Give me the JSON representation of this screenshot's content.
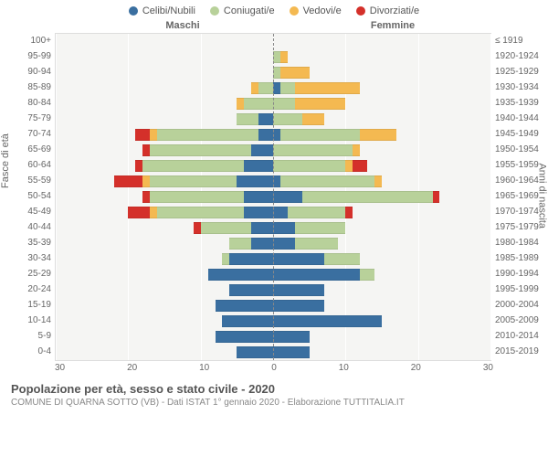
{
  "legend": [
    {
      "label": "Celibi/Nubili",
      "color": "#3a6fa0"
    },
    {
      "label": "Coniugati/e",
      "color": "#b8d19a"
    },
    {
      "label": "Vedovi/e",
      "color": "#f4b951"
    },
    {
      "label": "Divorziati/e",
      "color": "#d4302a"
    }
  ],
  "header_maschi": "Maschi",
  "header_femmine": "Femmine",
  "y_left_title": "Fasce di età",
  "y_right_title": "Anni di nascita",
  "title": "Popolazione per età, sesso e stato civile - 2020",
  "subtitle": "COMUNE DI QUARNA SOTTO (VB) - Dati ISTAT 1° gennaio 2020 - Elaborazione TUTTITALIA.IT",
  "x_ticks": [
    "30",
    "20",
    "10",
    "0",
    "10",
    "20",
    "30"
  ],
  "x_max": 30,
  "colors": {
    "celibi": "#3a6fa0",
    "coniugati": "#b8d19a",
    "vedovi": "#f4b951",
    "divorziati": "#d4302a",
    "plot_bg": "#f5f5f3",
    "grid": "#ffffff",
    "border": "#dddddd"
  },
  "rows": [
    {
      "age": "100+",
      "birth": "≤ 1919",
      "m": {
        "celibi": 0,
        "coniugati": 0,
        "vedovi": 0,
        "divorziati": 0
      },
      "f": {
        "celibi": 0,
        "coniugati": 0,
        "vedovi": 0,
        "divorziati": 0
      }
    },
    {
      "age": "95-99",
      "birth": "1920-1924",
      "m": {
        "celibi": 0,
        "coniugati": 0,
        "vedovi": 0,
        "divorziati": 0
      },
      "f": {
        "celibi": 0,
        "coniugati": 1,
        "vedovi": 1,
        "divorziati": 0
      }
    },
    {
      "age": "90-94",
      "birth": "1925-1929",
      "m": {
        "celibi": 0,
        "coniugati": 0,
        "vedovi": 0,
        "divorziati": 0
      },
      "f": {
        "celibi": 0,
        "coniugati": 1,
        "vedovi": 4,
        "divorziati": 0
      }
    },
    {
      "age": "85-89",
      "birth": "1930-1934",
      "m": {
        "celibi": 0,
        "coniugati": 2,
        "vedovi": 1,
        "divorziati": 0
      },
      "f": {
        "celibi": 1,
        "coniugati": 2,
        "vedovi": 9,
        "divorziati": 0
      }
    },
    {
      "age": "80-84",
      "birth": "1935-1939",
      "m": {
        "celibi": 0,
        "coniugati": 4,
        "vedovi": 1,
        "divorziati": 0
      },
      "f": {
        "celibi": 0,
        "coniugati": 3,
        "vedovi": 7,
        "divorziati": 0
      }
    },
    {
      "age": "75-79",
      "birth": "1940-1944",
      "m": {
        "celibi": 2,
        "coniugati": 3,
        "vedovi": 0,
        "divorziati": 0
      },
      "f": {
        "celibi": 0,
        "coniugati": 4,
        "vedovi": 3,
        "divorziati": 0
      }
    },
    {
      "age": "70-74",
      "birth": "1945-1949",
      "m": {
        "celibi": 2,
        "coniugati": 14,
        "vedovi": 1,
        "divorziati": 2
      },
      "f": {
        "celibi": 1,
        "coniugati": 11,
        "vedovi": 5,
        "divorziati": 0
      }
    },
    {
      "age": "65-69",
      "birth": "1950-1954",
      "m": {
        "celibi": 3,
        "coniugati": 14,
        "vedovi": 0,
        "divorziati": 1
      },
      "f": {
        "celibi": 0,
        "coniugati": 11,
        "vedovi": 1,
        "divorziati": 0
      }
    },
    {
      "age": "60-64",
      "birth": "1955-1959",
      "m": {
        "celibi": 4,
        "coniugati": 14,
        "vedovi": 0,
        "divorziati": 1
      },
      "f": {
        "celibi": 0,
        "coniugati": 10,
        "vedovi": 1,
        "divorziati": 2
      }
    },
    {
      "age": "55-59",
      "birth": "1960-1964",
      "m": {
        "celibi": 5,
        "coniugati": 12,
        "vedovi": 1,
        "divorziati": 4
      },
      "f": {
        "celibi": 1,
        "coniugati": 13,
        "vedovi": 1,
        "divorziati": 0
      }
    },
    {
      "age": "50-54",
      "birth": "1965-1969",
      "m": {
        "celibi": 4,
        "coniugati": 13,
        "vedovi": 0,
        "divorziati": 1
      },
      "f": {
        "celibi": 4,
        "coniugati": 18,
        "vedovi": 0,
        "divorziati": 1
      }
    },
    {
      "age": "45-49",
      "birth": "1970-1974",
      "m": {
        "celibi": 4,
        "coniugati": 12,
        "vedovi": 1,
        "divorziati": 3
      },
      "f": {
        "celibi": 2,
        "coniugati": 8,
        "vedovi": 0,
        "divorziati": 1
      }
    },
    {
      "age": "40-44",
      "birth": "1975-1979",
      "m": {
        "celibi": 3,
        "coniugati": 7,
        "vedovi": 0,
        "divorziati": 1
      },
      "f": {
        "celibi": 3,
        "coniugati": 7,
        "vedovi": 0,
        "divorziati": 0
      }
    },
    {
      "age": "35-39",
      "birth": "1980-1984",
      "m": {
        "celibi": 3,
        "coniugati": 3,
        "vedovi": 0,
        "divorziati": 0
      },
      "f": {
        "celibi": 3,
        "coniugati": 6,
        "vedovi": 0,
        "divorziati": 0
      }
    },
    {
      "age": "30-34",
      "birth": "1985-1989",
      "m": {
        "celibi": 6,
        "coniugati": 1,
        "vedovi": 0,
        "divorziati": 0
      },
      "f": {
        "celibi": 7,
        "coniugati": 5,
        "vedovi": 0,
        "divorziati": 0
      }
    },
    {
      "age": "25-29",
      "birth": "1990-1994",
      "m": {
        "celibi": 9,
        "coniugati": 0,
        "vedovi": 0,
        "divorziati": 0
      },
      "f": {
        "celibi": 12,
        "coniugati": 2,
        "vedovi": 0,
        "divorziati": 0
      }
    },
    {
      "age": "20-24",
      "birth": "1995-1999",
      "m": {
        "celibi": 6,
        "coniugati": 0,
        "vedovi": 0,
        "divorziati": 0
      },
      "f": {
        "celibi": 7,
        "coniugati": 0,
        "vedovi": 0,
        "divorziati": 0
      }
    },
    {
      "age": "15-19",
      "birth": "2000-2004",
      "m": {
        "celibi": 8,
        "coniugati": 0,
        "vedovi": 0,
        "divorziati": 0
      },
      "f": {
        "celibi": 7,
        "coniugati": 0,
        "vedovi": 0,
        "divorziati": 0
      }
    },
    {
      "age": "10-14",
      "birth": "2005-2009",
      "m": {
        "celibi": 7,
        "coniugati": 0,
        "vedovi": 0,
        "divorziati": 0
      },
      "f": {
        "celibi": 15,
        "coniugati": 0,
        "vedovi": 0,
        "divorziati": 0
      }
    },
    {
      "age": "5-9",
      "birth": "2010-2014",
      "m": {
        "celibi": 8,
        "coniugati": 0,
        "vedovi": 0,
        "divorziati": 0
      },
      "f": {
        "celibi": 5,
        "coniugati": 0,
        "vedovi": 0,
        "divorziati": 0
      }
    },
    {
      "age": "0-4",
      "birth": "2015-2019",
      "m": {
        "celibi": 5,
        "coniugati": 0,
        "vedovi": 0,
        "divorziati": 0
      },
      "f": {
        "celibi": 5,
        "coniugati": 0,
        "vedovi": 0,
        "divorziati": 0
      }
    }
  ]
}
